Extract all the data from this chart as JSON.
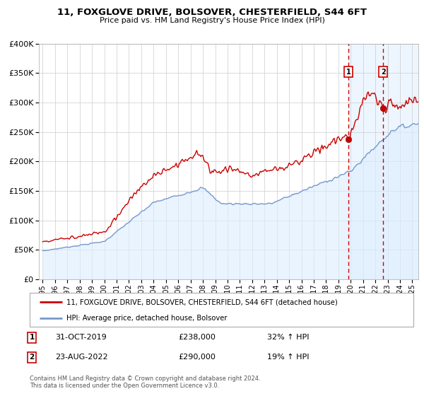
{
  "title": "11, FOXGLOVE DRIVE, BOLSOVER, CHESTERFIELD, S44 6FT",
  "subtitle": "Price paid vs. HM Land Registry's House Price Index (HPI)",
  "legend_line1": "11, FOXGLOVE DRIVE, BOLSOVER, CHESTERFIELD, S44 6FT (detached house)",
  "legend_line2": "HPI: Average price, detached house, Bolsover",
  "annotation1_date": "31-OCT-2019",
  "annotation1_price": "£238,000",
  "annotation1_pct": "32% ↑ HPI",
  "annotation2_date": "23-AUG-2022",
  "annotation2_price": "£290,000",
  "annotation2_pct": "19% ↑ HPI",
  "footnote": "Contains HM Land Registry data © Crown copyright and database right 2024.\nThis data is licensed under the Open Government Licence v3.0.",
  "red_line_color": "#cc0000",
  "blue_line_color": "#7799cc",
  "blue_fill_color": "#ddeeff",
  "vline_color": "#cc0000",
  "annotation_box_color": "#cc0000",
  "grid_color": "#cccccc",
  "highlight_color": "#ddeeff",
  "ylim": [
    0,
    400000
  ],
  "yticks": [
    0,
    50000,
    100000,
    150000,
    200000,
    250000,
    300000,
    350000,
    400000
  ],
  "sale1_year": 2019.83,
  "sale1_price": 238000,
  "sale2_year": 2022.64,
  "sale2_price": 290000,
  "xlim_start": 1994.7,
  "xlim_end": 2025.5
}
